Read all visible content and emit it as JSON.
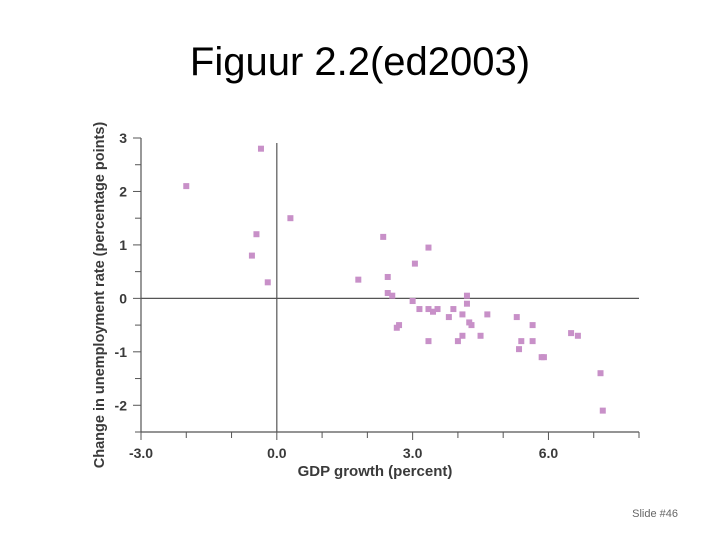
{
  "slide": {
    "title": "Figuur 2.2(ed2003)",
    "number_label": "Slide #46"
  },
  "chart_data": {
    "type": "scatter",
    "title": "",
    "xlabel": "GDP growth (percent)",
    "ylabel": "Change in unemployment rate (percentage points)",
    "xlim": [
      -3.0,
      8.0
    ],
    "ylim": [
      -2.5,
      3.0
    ],
    "x_ticks": [
      -3.0,
      0.0,
      3.0,
      6.0
    ],
    "x_tick_labels": [
      "-3.0",
      "0.0",
      "3.0",
      "6.0"
    ],
    "y_ticks": [
      3,
      2,
      1,
      0,
      -1,
      -2
    ],
    "y_tick_labels": [
      "3",
      "2",
      "1",
      "0",
      "-1",
      "-2"
    ],
    "grid": false,
    "marker_color": "#c890c8",
    "points": [
      {
        "x": -2.0,
        "y": 2.1
      },
      {
        "x": -0.35,
        "y": 2.8
      },
      {
        "x": 0.3,
        "y": 1.5
      },
      {
        "x": -0.45,
        "y": 1.2
      },
      {
        "x": -0.55,
        "y": 0.8
      },
      {
        "x": -0.2,
        "y": 0.3
      },
      {
        "x": 1.8,
        "y": 0.35
      },
      {
        "x": 2.35,
        "y": 1.15
      },
      {
        "x": 3.35,
        "y": 0.95
      },
      {
        "x": 3.05,
        "y": 0.65
      },
      {
        "x": 2.45,
        "y": 0.4
      },
      {
        "x": 2.45,
        "y": 0.1
      },
      {
        "x": 2.55,
        "y": 0.05
      },
      {
        "x": 3.0,
        "y": -0.05
      },
      {
        "x": 3.15,
        "y": -0.2
      },
      {
        "x": 3.35,
        "y": -0.2
      },
      {
        "x": 3.45,
        "y": -0.25
      },
      {
        "x": 3.55,
        "y": -0.2
      },
      {
        "x": 3.8,
        "y": -0.35
      },
      {
        "x": 3.9,
        "y": -0.2
      },
      {
        "x": 4.2,
        "y": 0.05
      },
      {
        "x": 4.2,
        "y": -0.1
      },
      {
        "x": 4.1,
        "y": -0.3
      },
      {
        "x": 4.25,
        "y": -0.45
      },
      {
        "x": 4.3,
        "y": -0.5
      },
      {
        "x": 4.65,
        "y": -0.3
      },
      {
        "x": 2.65,
        "y": -0.55
      },
      {
        "x": 2.7,
        "y": -0.5
      },
      {
        "x": 3.35,
        "y": -0.8
      },
      {
        "x": 4.0,
        "y": -0.8
      },
      {
        "x": 4.1,
        "y": -0.7
      },
      {
        "x": 4.5,
        "y": -0.7
      },
      {
        "x": 5.3,
        "y": -0.35
      },
      {
        "x": 5.65,
        "y": -0.5
      },
      {
        "x": 5.4,
        "y": -0.8
      },
      {
        "x": 5.65,
        "y": -0.8
      },
      {
        "x": 5.35,
        "y": -0.95
      },
      {
        "x": 5.85,
        "y": -1.1
      },
      {
        "x": 5.9,
        "y": -1.1
      },
      {
        "x": 6.5,
        "y": -0.65
      },
      {
        "x": 6.65,
        "y": -0.7
      },
      {
        "x": 7.15,
        "y": -1.4
      },
      {
        "x": 7.2,
        "y": -2.1
      }
    ]
  }
}
